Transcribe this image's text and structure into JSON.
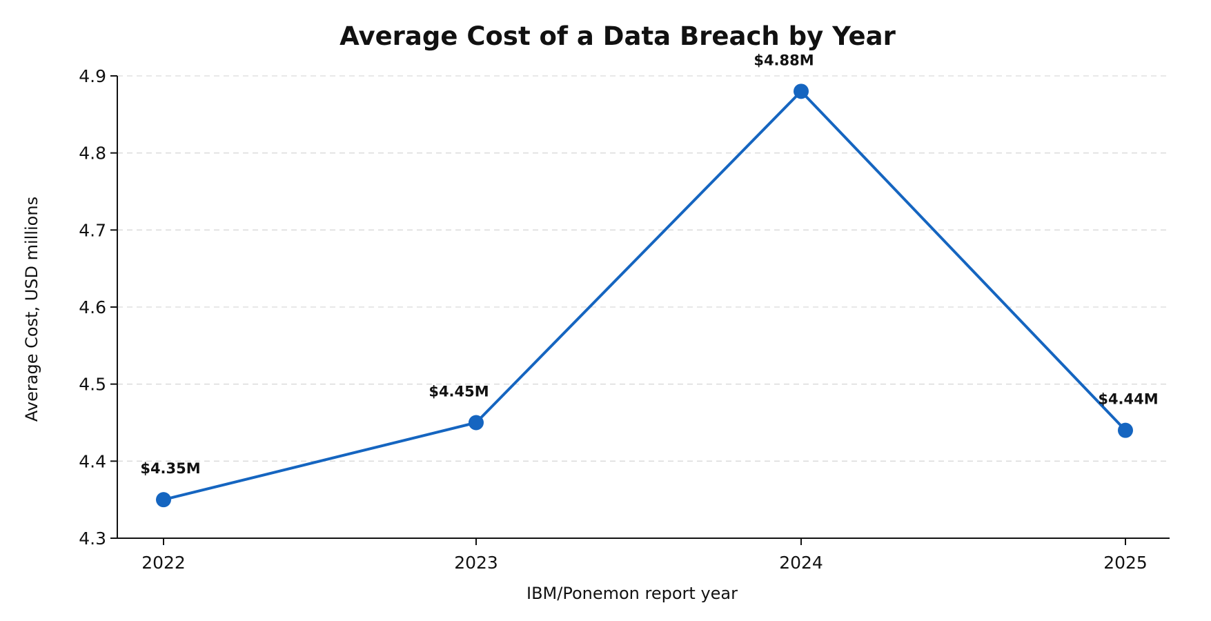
{
  "chart_data": {
    "type": "line",
    "title": "Average Cost of a Data Breach by Year",
    "xlabel": "IBM/Ponemon report year",
    "ylabel": "Average Cost, USD millions",
    "categories": [
      "2022",
      "2023",
      "2024",
      "2025"
    ],
    "series": [
      {
        "values": [
          4.35,
          4.45,
          4.88,
          4.44
        ],
        "labels": [
          "$4.35M",
          "$4.45M",
          "$4.88M",
          "$4.44M"
        ],
        "color": "#1565c0"
      }
    ],
    "ylim": [
      4.3,
      4.9
    ],
    "yticks": [
      4.3,
      4.4,
      4.5,
      4.6,
      4.7,
      4.8,
      4.9
    ],
    "ytick_labels": [
      "4.3",
      "4.4",
      "4.5",
      "4.6",
      "4.7",
      "4.8",
      "4.9"
    ],
    "grid": "horizontal-dashed",
    "legend": "none"
  }
}
